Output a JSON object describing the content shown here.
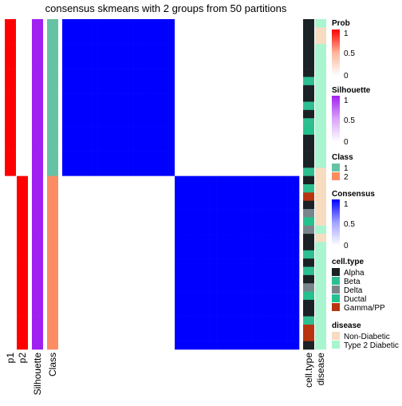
{
  "chart_data": {
    "type": "heatmap",
    "title": "consensus skmeans with 2 groups from 50 partitions",
    "n_samples": 40,
    "class_sizes": [
      19,
      21
    ],
    "annotation_columns": [
      "p1",
      "p2",
      "Silhouette",
      "Class"
    ],
    "right_annotation_columns": [
      "cell.type",
      "disease"
    ],
    "prob": {
      "p1": [
        1,
        1,
        1,
        1,
        1,
        1,
        1,
        1,
        1,
        1,
        1,
        1,
        1,
        1,
        1,
        1,
        1,
        1,
        1,
        0,
        0,
        0,
        0,
        0,
        0,
        0,
        0,
        0,
        0,
        0,
        0,
        0,
        0,
        0,
        0,
        0,
        0,
        0,
        0,
        0
      ],
      "p2": [
        0,
        0,
        0,
        0,
        0,
        0,
        0,
        0,
        0,
        0,
        0,
        0,
        0,
        0,
        0,
        0,
        0,
        0,
        0,
        1,
        1,
        1,
        1,
        1,
        1,
        1,
        1,
        1,
        1,
        1,
        1,
        1,
        1,
        1,
        1,
        1,
        1,
        1,
        1,
        1
      ]
    },
    "silhouette": [
      1,
      1,
      1,
      1,
      1,
      1,
      1,
      1,
      1,
      1,
      1,
      1,
      1,
      1,
      1,
      1,
      1,
      1,
      1,
      1,
      1,
      1,
      1,
      1,
      1,
      1,
      1,
      1,
      1,
      1,
      1,
      1,
      1,
      1,
      1,
      1,
      1,
      1,
      1,
      1
    ],
    "class": [
      1,
      1,
      1,
      1,
      1,
      1,
      1,
      1,
      1,
      1,
      1,
      1,
      1,
      1,
      1,
      1,
      1,
      1,
      1,
      2,
      2,
      2,
      2,
      2,
      2,
      2,
      2,
      2,
      2,
      2,
      2,
      2,
      2,
      2,
      2,
      2,
      2,
      2,
      2,
      2
    ],
    "cell_type": [
      "Alpha",
      "Alpha",
      "Alpha",
      "Alpha",
      "Alpha",
      "Alpha",
      "Alpha",
      "Beta",
      "Alpha",
      "Alpha",
      "Beta",
      "Alpha",
      "Beta",
      "Ductal",
      "Alpha",
      "Alpha",
      "Alpha",
      "Alpha",
      "Beta",
      "Alpha",
      "Beta",
      "Gamma/PP",
      "Alpha",
      "Delta",
      "Ductal",
      "Delta",
      "Alpha",
      "Alpha",
      "Beta",
      "Alpha",
      "Beta",
      "Alpha",
      "Delta",
      "Ductal",
      "Alpha",
      "Alpha",
      "Beta",
      "Gamma/PP",
      "Gamma/PP",
      "Alpha"
    ],
    "disease": [
      "Type 2 Diabetic",
      "Non-Diabetic",
      "Non-Diabetic",
      "Type 2 Diabetic",
      "Type 2 Diabetic",
      "Type 2 Diabetic",
      "Type 2 Diabetic",
      "Type 2 Diabetic",
      "Type 2 Diabetic",
      "Type 2 Diabetic",
      "Type 2 Diabetic",
      "Type 2 Diabetic",
      "Type 2 Diabetic",
      "Type 2 Diabetic",
      "Type 2 Diabetic",
      "Type 2 Diabetic",
      "Type 2 Diabetic",
      "Type 2 Diabetic",
      "Non-Diabetic",
      "Non-Diabetic",
      "Non-Diabetic",
      "Non-Diabetic",
      "Non-Diabetic",
      "Non-Diabetic",
      "Non-Diabetic",
      "Type 2 Diabetic",
      "Non-Diabetic",
      "Type 2 Diabetic",
      "Type 2 Diabetic",
      "Type 2 Diabetic",
      "Type 2 Diabetic",
      "Type 2 Diabetic",
      "Type 2 Diabetic",
      "Type 2 Diabetic",
      "Type 2 Diabetic",
      "Type 2 Diabetic",
      "Type 2 Diabetic",
      "Type 2 Diabetic",
      "Type 2 Diabetic",
      "Type 2 Diabetic"
    ],
    "consensus_within": 1,
    "consensus_between": 0,
    "column_labels": [
      "p1",
      "p2",
      "Silhouette",
      "Class",
      "cell.type",
      "disease"
    ],
    "legends": {
      "prob": {
        "title": "Prob",
        "ticks": [
          "1",
          "0.5",
          "0"
        ]
      },
      "silhouette": {
        "title": "Silhouette",
        "ticks": [
          "1",
          "0.5",
          "0"
        ]
      },
      "class": {
        "title": "Class",
        "items": [
          "1",
          "2"
        ]
      },
      "consensus": {
        "title": "Consensus",
        "ticks": [
          "1",
          "0.5",
          "0"
        ]
      },
      "cell_type": {
        "title": "cell.type",
        "items": [
          "Alpha",
          "Beta",
          "Delta",
          "Ductal",
          "Gamma/PP"
        ]
      },
      "disease": {
        "title": "disease",
        "items": [
          "Non-Diabetic",
          "Type 2 Diabetic"
        ]
      }
    },
    "colors": {
      "prob_high": "#ff0000",
      "prob_low": "#ffffff",
      "silhouette_high": "#a020f0",
      "class": {
        "1": "#66c2a5",
        "2": "#fc8d62"
      },
      "consensus_high": "#0000ff",
      "consensus_low": "#ffffff",
      "cell_type": {
        "Alpha": "#1b2226",
        "Beta": "#2ebf91",
        "Delta": "#78868b",
        "Ductal": "#24c08d",
        "Gamma/PP": "#b8340f"
      },
      "disease": {
        "Non-Diabetic": "#f8dcc1",
        "Type 2 Diabetic": "#a8f5cf"
      }
    }
  }
}
